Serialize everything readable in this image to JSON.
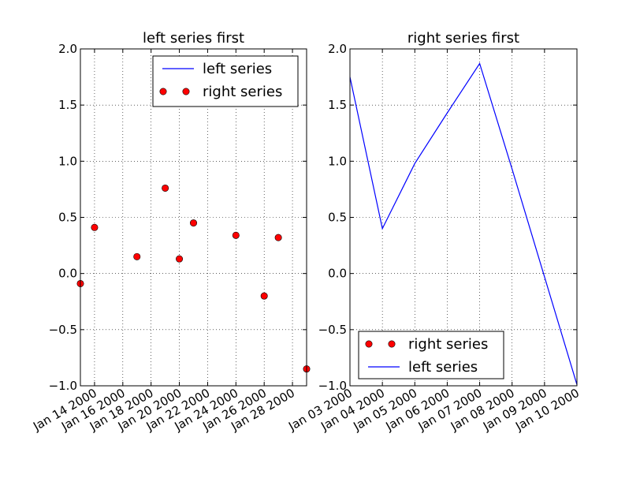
{
  "chart_data": [
    {
      "type": "scatter",
      "title": "left series first",
      "xlabel": "",
      "ylabel": "",
      "ylim": [
        -1.0,
        2.0
      ],
      "xlim": [
        "2000-01-13",
        "2000-01-29"
      ],
      "grid": true,
      "x_tick_labels": [
        "Jan 14 2000",
        "Jan 16 2000",
        "Jan 18 2000",
        "Jan 20 2000",
        "Jan 22 2000",
        "Jan 24 2000",
        "Jan 26 2000",
        "Jan 28 2000"
      ],
      "y_tick_labels": [
        "2.0",
        "1.5",
        "1.0",
        "0.5",
        "0.0",
        "−0.5",
        "−1.0"
      ],
      "legend": {
        "placement": "upper right",
        "entries": [
          {
            "label": "left series",
            "style": "line",
            "color": "#0000ff"
          },
          {
            "label": "right series",
            "style": "marker",
            "color": "#ff0000"
          }
        ]
      },
      "series": [
        {
          "name": "right series",
          "style": "marker",
          "color": "#ff0000",
          "x": [
            "2000-01-13",
            "2000-01-14",
            "2000-01-17",
            "2000-01-19",
            "2000-01-20",
            "2000-01-21",
            "2000-01-24",
            "2000-01-26",
            "2000-01-27",
            "2000-01-29"
          ],
          "y": [
            -0.09,
            0.41,
            0.15,
            0.76,
            0.13,
            0.45,
            0.34,
            -0.2,
            0.32,
            -0.85
          ]
        }
      ]
    },
    {
      "type": "line",
      "title": "right series first",
      "xlabel": "",
      "ylabel": "",
      "ylim": [
        -1.0,
        2.0
      ],
      "xlim": [
        "2000-01-03",
        "2000-01-10"
      ],
      "grid": true,
      "x_tick_labels": [
        "Jan 03 2000",
        "Jan 04 2000",
        "Jan 05 2000",
        "Jan 06 2000",
        "Jan 07 2000",
        "Jan 08 2000",
        "Jan 09 2000",
        "Jan 10 2000"
      ],
      "y_tick_labels": [
        "2.0",
        "1.5",
        "1.0",
        "0.5",
        "0.0",
        "−0.5",
        "−1.0"
      ],
      "legend": {
        "placement": "lower left",
        "entries": [
          {
            "label": "right series",
            "style": "marker",
            "color": "#ff0000"
          },
          {
            "label": "left series",
            "style": "line",
            "color": "#0000ff"
          }
        ]
      },
      "series": [
        {
          "name": "left series",
          "style": "line",
          "color": "#0000ff",
          "x": [
            "2000-01-03",
            "2000-01-04",
            "2000-01-05",
            "2000-01-06",
            "2000-01-07",
            "2000-01-08",
            "2000-01-09",
            "2000-01-10"
          ],
          "y": [
            1.75,
            0.4,
            0.98,
            1.43,
            1.87,
            0.93,
            -0.03,
            -0.99
          ]
        }
      ]
    }
  ]
}
